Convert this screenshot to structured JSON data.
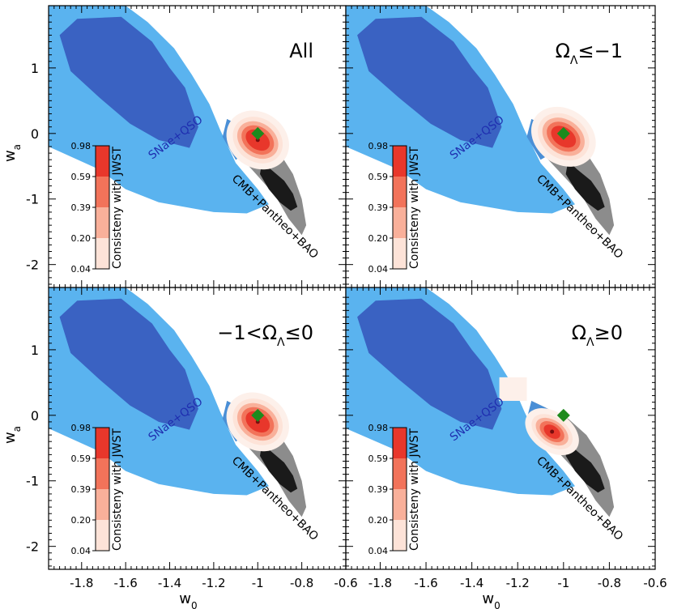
{
  "chart_data": [
    {
      "type": "contour",
      "title": "All",
      "xlabel": "",
      "ylabel": "w_a",
      "xlim": [
        -1.95,
        -0.6
      ],
      "ylim": [
        -2.35,
        1.95
      ],
      "xticks": [],
      "yticks": [
        1,
        0,
        -1,
        -2
      ],
      "marker": {
        "label": "ΛCDM",
        "x": -1.0,
        "y": 0.0,
        "color": "#1d8a1d"
      },
      "series": [
        {
          "name": "SNae+QSO",
          "color": "#3a62c2",
          "level": "1σ"
        },
        {
          "name": "SNae+QSO",
          "color": "#5ab3ef",
          "level": "2σ"
        },
        {
          "name": "CMB+Pantheo+BAO",
          "color": "#1a1a1a",
          "level": "1σ"
        },
        {
          "name": "CMB+Pantheo+BAO",
          "color": "#8c8c8c",
          "level": "2σ"
        },
        {
          "name": "Consisteny with JWST",
          "type": "heatmap",
          "peak": [
            -1.0,
            -0.1
          ]
        }
      ]
    },
    {
      "type": "contour",
      "title": "Ω_Λ≤−1",
      "xlabel": "",
      "ylabel": "",
      "xlim": [
        -1.95,
        -0.6
      ],
      "ylim": [
        -2.35,
        1.95
      ],
      "xticks": [],
      "yticks": [],
      "marker": {
        "label": "ΛCDM",
        "x": -1.0,
        "y": 0.0,
        "color": "#1d8a1d"
      },
      "series": [
        {
          "name": "SNae+QSO",
          "color": "#3a62c2",
          "level": "1σ"
        },
        {
          "name": "SNae+QSO",
          "color": "#5ab3ef",
          "level": "2σ"
        },
        {
          "name": "CMB+Pantheo+BAO",
          "color": "#1a1a1a",
          "level": "1σ"
        },
        {
          "name": "CMB+Pantheo+BAO",
          "color": "#8c8c8c",
          "level": "2σ"
        },
        {
          "name": "Consisteny with JWST",
          "type": "heatmap",
          "peak": [
            -1.0,
            -0.05
          ]
        }
      ]
    },
    {
      "type": "contour",
      "title": "−1<Ω_Λ≤0",
      "xlabel": "w_0",
      "ylabel": "w_a",
      "xlim": [
        -1.95,
        -0.6
      ],
      "ylim": [
        -2.35,
        1.95
      ],
      "xticks": [
        -1.8,
        -1.6,
        -1.4,
        -1.2,
        -1.0,
        -0.8,
        -0.6
      ],
      "yticks": [
        1,
        0,
        -1,
        -2
      ],
      "marker": {
        "label": "ΛCDM",
        "x": -1.0,
        "y": 0.0,
        "color": "#1d8a1d"
      },
      "series": [
        {
          "name": "SNae+QSO",
          "color": "#3a62c2",
          "level": "1σ"
        },
        {
          "name": "SNae+QSO",
          "color": "#5ab3ef",
          "level": "2σ"
        },
        {
          "name": "CMB+Pantheo+BAO",
          "color": "#1a1a1a",
          "level": "1σ"
        },
        {
          "name": "CMB+Pantheo+BAO",
          "color": "#8c8c8c",
          "level": "2σ"
        },
        {
          "name": "Consisteny with JWST",
          "type": "heatmap",
          "peak": [
            -1.0,
            -0.1
          ]
        }
      ]
    },
    {
      "type": "contour",
      "title": "Ω_Λ≥0",
      "xlabel": "w_0",
      "ylabel": "",
      "xlim": [
        -1.95,
        -0.6
      ],
      "ylim": [
        -2.35,
        1.95
      ],
      "xticks": [
        -1.8,
        -1.6,
        -1.4,
        -1.2,
        -1.0,
        -0.8,
        -0.6
      ],
      "yticks": [],
      "marker": {
        "label": "ΛCDM",
        "x": -1.0,
        "y": 0.0,
        "color": "#1d8a1d"
      },
      "series": [
        {
          "name": "SNae+QSO",
          "color": "#3a62c2",
          "level": "1σ"
        },
        {
          "name": "SNae+QSO",
          "color": "#5ab3ef",
          "level": "2σ"
        },
        {
          "name": "CMB+Pantheo+BAO",
          "color": "#1a1a1a",
          "level": "1σ"
        },
        {
          "name": "CMB+Pantheo+BAO",
          "color": "#8c8c8c",
          "level": "2σ"
        },
        {
          "name": "Consisteny with JWST",
          "type": "heatmap",
          "peak": [
            -1.05,
            -0.25
          ]
        }
      ]
    }
  ],
  "colorbar": {
    "label": "Consisteny with JWST",
    "ticks": [
      "0.98",
      "0.59",
      "0.39",
      "0.20",
      "0.04"
    ],
    "colors": [
      "#e8372b",
      "#f2735a",
      "#f9b09a",
      "#fde3d8"
    ]
  },
  "labels": {
    "snae": "SNae+QSO",
    "cmb": "CMB+Pantheo+BAO",
    "xaxis": "w",
    "xsub": "0",
    "yaxis": "w",
    "ysub": "a"
  },
  "colors": {
    "snae_inner": "#3a62c2",
    "snae_outer": "#5ab3ef",
    "cmb_inner": "#1a1a1a",
    "cmb_outer": "#8c8c8c",
    "snae_text": "#1f2fb0",
    "marker": "#1d8a1d"
  }
}
